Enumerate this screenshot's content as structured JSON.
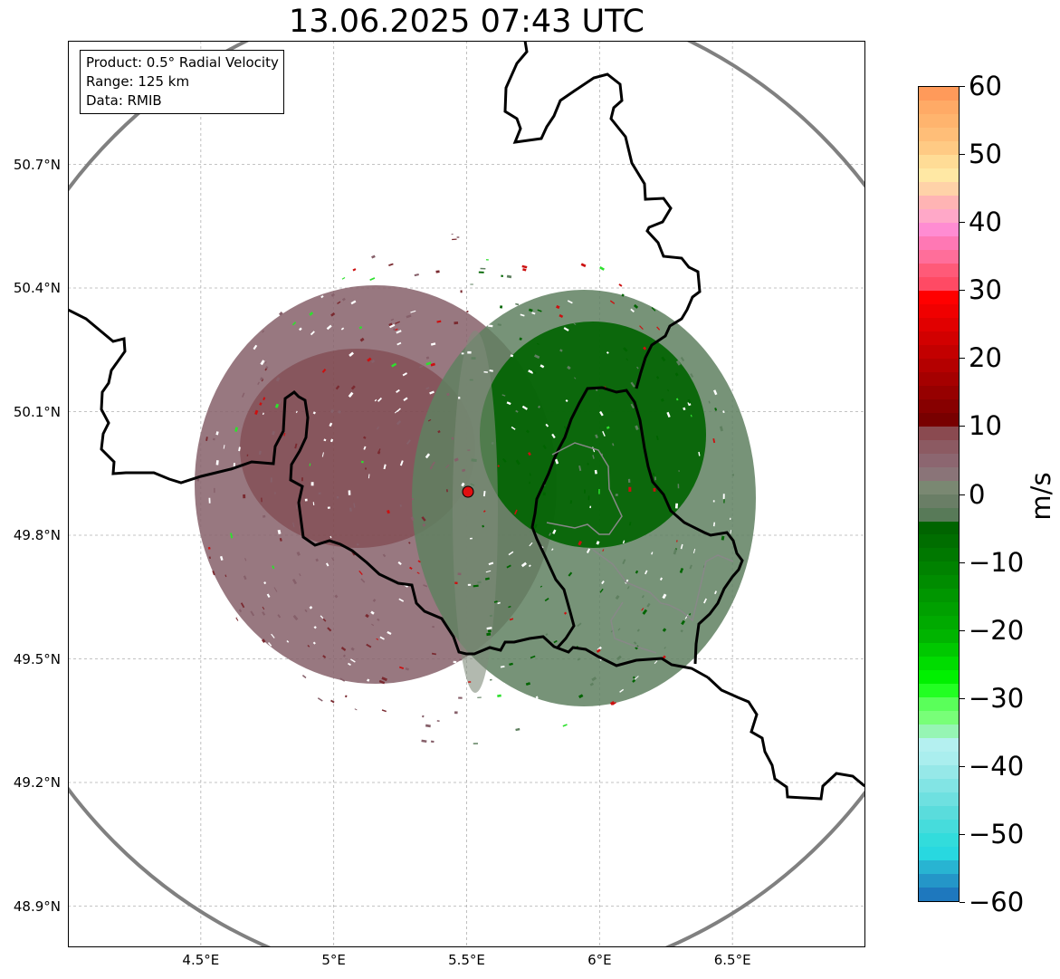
{
  "title": "13.06.2025 07:43 UTC",
  "info_box": {
    "product": "Product: 0.5° Radial Velocity",
    "range": "Range: 125 km",
    "data": "Data: RMIB"
  },
  "map": {
    "lon_range": [
      4.0,
      7.0
    ],
    "lat_range": [
      48.8,
      51.0
    ],
    "radar_site": {
      "lon": 5.506,
      "lat": 49.914
    },
    "range_km": 125,
    "lat_ticks": [
      {
        "value": 48.9,
        "label": "48.9°N"
      },
      {
        "value": 49.2,
        "label": "49.2°N"
      },
      {
        "value": 49.5,
        "label": "49.5°N"
      },
      {
        "value": 49.8,
        "label": "49.8°N"
      },
      {
        "value": 50.1,
        "label": "50.1°N"
      },
      {
        "value": 50.4,
        "label": "50.4°N"
      },
      {
        "value": 50.7,
        "label": "50.7°N"
      }
    ],
    "lon_ticks": [
      {
        "value": 4.5,
        "label": "4.5°E"
      },
      {
        "value": 5.0,
        "label": "5°E"
      },
      {
        "value": 5.5,
        "label": "5.5°E"
      },
      {
        "value": 6.0,
        "label": "6°E"
      },
      {
        "value": 6.5,
        "label": "6.5°E"
      }
    ],
    "colors": {
      "range_ring": "#808080",
      "border": "#000000",
      "subborder": "#888888",
      "grid": "#b0b0b0",
      "site": "#e01010",
      "incoming_core": "#006400",
      "incoming_main": "#5f8060",
      "outgoing_main": "#86606a",
      "outgoing_core": "#7a2a30"
    }
  },
  "colorbar": {
    "unit": "m/s",
    "min": -60,
    "max": 60,
    "ticks": [
      {
        "value": 60,
        "label": "60"
      },
      {
        "value": 50,
        "label": "50"
      },
      {
        "value": 40,
        "label": "40"
      },
      {
        "value": 30,
        "label": "30"
      },
      {
        "value": 20,
        "label": "20"
      },
      {
        "value": 10,
        "label": "10"
      },
      {
        "value": 0,
        "label": "0"
      },
      {
        "value": -10,
        "label": "−10"
      },
      {
        "value": -20,
        "label": "−20"
      },
      {
        "value": -30,
        "label": "−30"
      },
      {
        "value": -40,
        "label": "−40"
      },
      {
        "value": -50,
        "label": "−50"
      },
      {
        "value": -60,
        "label": "−60"
      }
    ],
    "colors_top_to_bottom": [
      "#ff9a5a",
      "#ffaa66",
      "#ffb46e",
      "#ffbe78",
      "#ffca84",
      "#ffdc96",
      "#ffe8a4",
      "#ffd2a8",
      "#ffb4b4",
      "#ffa8c8",
      "#ff8cd2",
      "#ff78b4",
      "#ff6e9a",
      "#ff5a78",
      "#ff4a64",
      "#ff0000",
      "#f00000",
      "#e10000",
      "#d20000",
      "#c30000",
      "#b40000",
      "#a50000",
      "#960000",
      "#870000",
      "#780000",
      "#8a4a50",
      "#8c5a62",
      "#8c6670",
      "#8a7478",
      "#7a8872",
      "#6a7e66",
      "#587a58",
      "#006400",
      "#006e00",
      "#007800",
      "#008200",
      "#008c00",
      "#009600",
      "#00a000",
      "#00aa00",
      "#00b400",
      "#00c800",
      "#00dc00",
      "#00f000",
      "#22ff22",
      "#5aff5a",
      "#78ff78",
      "#96f5b4",
      "#b4f0f0",
      "#aaeeee",
      "#96e8e8",
      "#82e4e4",
      "#6ee0e0",
      "#5adcdc",
      "#46dcdc",
      "#32dcdc",
      "#28d8e0",
      "#28b4d2",
      "#2496c8",
      "#1e78be"
    ]
  }
}
